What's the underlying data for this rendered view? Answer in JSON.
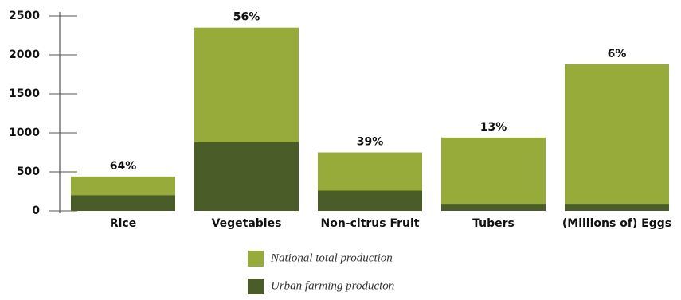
{
  "chart_data": {
    "type": "bar",
    "categories": [
      "Rice",
      "Vegetables",
      "Non-citrus Fruit",
      "Tubers",
      "(Millions of) Eggs"
    ],
    "series": [
      {
        "name": "National total production",
        "color": "#97ab3a",
        "values": [
          440,
          2350,
          750,
          940,
          1880
        ]
      },
      {
        "name": "Urban farming producton",
        "color": "#4a5c27",
        "values": [
          200,
          880,
          260,
          90,
          90
        ]
      }
    ],
    "bar_labels": [
      "64%",
      "56%",
      "39%",
      "13%",
      "6%"
    ],
    "ylim": [
      0,
      2500
    ],
    "yticks": [
      0,
      500,
      1000,
      1500,
      2000,
      2500
    ]
  }
}
